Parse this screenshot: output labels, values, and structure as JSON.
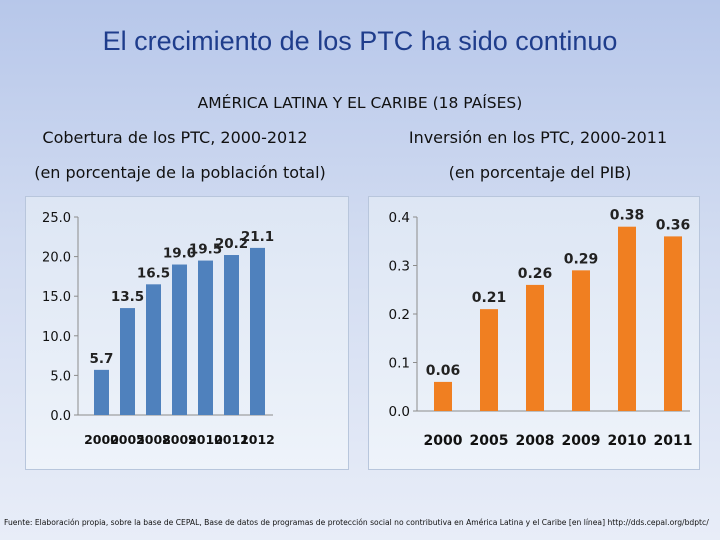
{
  "slide": {
    "title": "El crecimiento de los PTC ha sido continuo",
    "region_title": "AMÉRICA LATINA Y EL CARIBE (18 PAÍSES)",
    "source": "Fuente: Elaboración propia, sobre la base de CEPAL, Base de datos de programas de protección social no contributiva en América Latina y el Caribe [en línea] http://dds.cepal.org/bdptc/"
  },
  "panels": [
    {
      "title": "Cobertura de los PTC, 2000-2012",
      "subtitle": "(en porcentaje de la población total)"
    },
    {
      "title": "Inversión en los PTC, 2000-2011",
      "subtitle": "(en porcentaje del PIB)"
    }
  ],
  "colors": {
    "coverage_bar": "#4f81bd",
    "investment_bar": "#f07f21"
  },
  "chart_data": [
    {
      "type": "bar",
      "title": "Cobertura de los PTC, 2000-2012",
      "subtitle": "(en porcentaje de la población total)",
      "categories": [
        "2000",
        "2005",
        "2008",
        "2009",
        "2010",
        "2011",
        "2012"
      ],
      "values": [
        5.7,
        13.5,
        16.5,
        19.0,
        19.5,
        20.2,
        21.1
      ],
      "value_labels": [
        "5.7",
        "13.5",
        "16.5",
        "19.0",
        "19.5",
        "20.2",
        "21.1"
      ],
      "ylim": [
        0,
        25
      ],
      "yticks": [
        "0.0",
        "5.0",
        "10.0",
        "15.0",
        "20.0",
        "25.0"
      ],
      "xlabel": "",
      "ylabel": "",
      "grid": false,
      "legend": "none"
    },
    {
      "type": "bar",
      "title": "Inversión en los PTC, 2000-2011",
      "subtitle": "(en porcentaje del PIB)",
      "categories": [
        "2000",
        "2005",
        "2008",
        "2009",
        "2010",
        "2011"
      ],
      "values": [
        0.06,
        0.21,
        0.26,
        0.29,
        0.38,
        0.36
      ],
      "value_labels": [
        "0.06",
        "0.21",
        "0.26",
        "0.29",
        "0.38",
        "0.36"
      ],
      "ylim": [
        0,
        0.4
      ],
      "yticks": [
        "0.0",
        "0.1",
        "0.2",
        "0.3",
        "0.4"
      ],
      "xlabel": "",
      "ylabel": "",
      "grid": false,
      "legend": "none"
    }
  ]
}
